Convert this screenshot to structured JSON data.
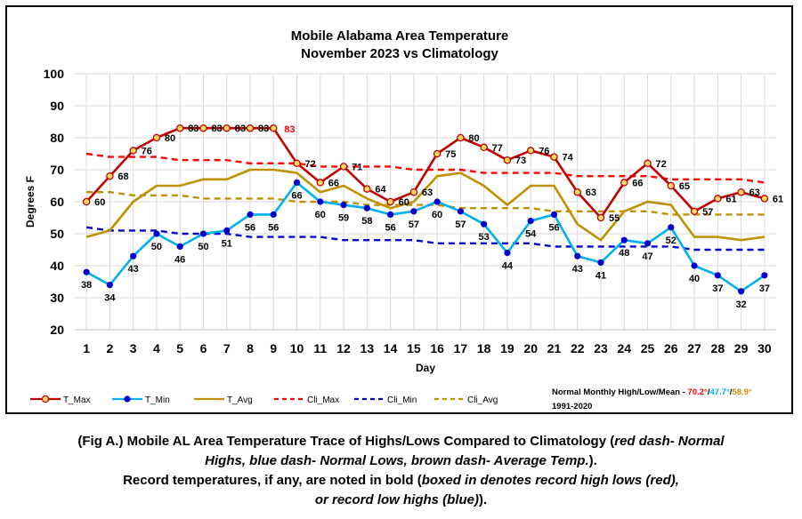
{
  "chart_data": {
    "type": "line",
    "title": [
      "Mobile Alabama Area Temperature",
      "November 2023 vs Climatology"
    ],
    "xlabel": "Day",
    "ylabel": "Degrees F",
    "ylim": [
      20,
      100
    ],
    "yticks": [
      20,
      30,
      40,
      50,
      60,
      70,
      80,
      90,
      100
    ],
    "x": [
      1,
      2,
      3,
      4,
      5,
      6,
      7,
      8,
      9,
      10,
      11,
      12,
      13,
      14,
      15,
      16,
      17,
      18,
      19,
      20,
      21,
      22,
      23,
      24,
      25,
      26,
      27,
      28,
      29,
      30
    ],
    "grid": "on",
    "legend_position": "bottom",
    "series": [
      {
        "name": "T_Max",
        "color": "#c00000",
        "style": "solid",
        "marker": "yellow-circle",
        "labeled": true,
        "values": [
          60,
          68,
          76,
          80,
          83,
          83,
          83,
          83,
          83,
          72,
          66,
          71,
          64,
          60,
          63,
          75,
          80,
          77,
          73,
          76,
          74,
          63,
          55,
          66,
          72,
          65,
          57,
          61,
          63,
          61
        ]
      },
      {
        "name": "T_Min",
        "color": "#00b0f0",
        "style": "solid",
        "marker": "blue-dot",
        "labeled": true,
        "values": [
          38,
          34,
          43,
          50,
          46,
          50,
          51,
          56,
          56,
          66,
          60,
          59,
          58,
          56,
          57,
          60,
          57,
          53,
          44,
          54,
          56,
          43,
          41,
          48,
          47,
          52,
          40,
          37,
          32,
          37
        ]
      },
      {
        "name": "T_Avg",
        "color": "#bf9000",
        "style": "solid",
        "marker": "none",
        "labeled": false,
        "values": [
          49,
          51,
          60,
          65,
          65,
          67,
          67,
          70,
          70,
          69,
          63,
          65,
          61,
          58,
          60,
          68,
          69,
          65,
          59,
          65,
          65,
          53,
          48,
          57,
          60,
          59,
          49,
          49,
          48,
          49
        ]
      },
      {
        "name": "Cli_Max",
        "color": "#ff0000",
        "style": "dashed",
        "marker": "none",
        "labeled": false,
        "values": [
          75,
          74,
          74,
          74,
          73,
          73,
          73,
          72,
          72,
          72,
          71,
          71,
          71,
          71,
          70,
          70,
          70,
          69,
          69,
          69,
          69,
          68,
          68,
          68,
          68,
          67,
          67,
          67,
          67,
          66
        ]
      },
      {
        "name": "Cli_Min",
        "color": "#0000cc",
        "style": "dashed",
        "marker": "none",
        "labeled": false,
        "values": [
          52,
          51,
          51,
          51,
          50,
          50,
          50,
          49,
          49,
          49,
          49,
          48,
          48,
          48,
          48,
          47,
          47,
          47,
          47,
          47,
          46,
          46,
          46,
          46,
          46,
          46,
          45,
          45,
          45,
          45
        ]
      },
      {
        "name": "Cli_Avg",
        "color": "#bf9000",
        "style": "dashed",
        "marker": "none",
        "labeled": false,
        "values": [
          63,
          63,
          62,
          62,
          62,
          61,
          61,
          61,
          61,
          60,
          60,
          60,
          59,
          59,
          59,
          59,
          58,
          58,
          58,
          58,
          57,
          57,
          57,
          57,
          57,
          56,
          56,
          56,
          56,
          56
        ]
      }
    ],
    "annotations": [
      {
        "text": "83",
        "day": 9,
        "value": 83,
        "color": "#ff0000",
        "note": "record"
      }
    ],
    "normals": {
      "label": "Normal Monthly High/Low/Mean - ",
      "high": "70.2°",
      "low": "47.7°",
      "mean": "58.9°",
      "sep": "/",
      "period": "1991-2020",
      "high_color": "#ff0000",
      "low_color": "#00b0f0",
      "mean_color": "#bf9000"
    }
  },
  "caption": {
    "l1a": "(Fig A.) Mobile AL Area Temperature Trace of Highs/Lows Compared to Climatology (",
    "l1b": "red dash- Normal",
    "l2a": "Highs, blue dash- Normal Lows, brown dash- Average Temp.",
    "l2b": ").",
    "l3": "Record temperatures, if any, are noted in bold (",
    "l3b": "boxed in denotes record high lows (red),",
    "l4a": "or record low highs (blue)",
    "l4b": ")."
  }
}
